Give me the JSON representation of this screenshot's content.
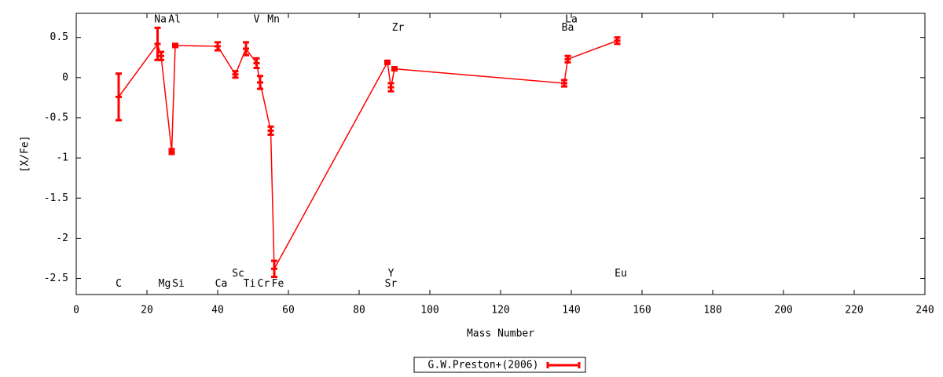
{
  "chart_data": {
    "type": "line",
    "xlabel": "Mass Number",
    "ylabel": "[X/Fe]",
    "xlim": [
      0,
      240
    ],
    "xticks": [
      0,
      20,
      40,
      60,
      80,
      100,
      120,
      140,
      160,
      180,
      200,
      220,
      240
    ],
    "ylim": [
      -2.7,
      0.8
    ],
    "yticks": [
      0.5,
      0,
      -0.5,
      -1,
      -1.5,
      -2,
      -2.5
    ],
    "legend": "bottom",
    "series": [
      {
        "name": "G.W.Preston+(2006)",
        "color": "#ff0000",
        "x": [
          12,
          23,
          24,
          27,
          28,
          40,
          45,
          48,
          51,
          52,
          55,
          56,
          88,
          89,
          90,
          138,
          139,
          153
        ],
        "values": [
          -0.24,
          0.42,
          0.27,
          -0.92,
          0.4,
          0.39,
          0.04,
          0.36,
          0.18,
          -0.06,
          -0.66,
          -2.38,
          0.19,
          -0.12,
          0.11,
          -0.07,
          0.23,
          0.46
        ],
        "errors": [
          0.29,
          0.2,
          0.05,
          0.03,
          0.02,
          0.05,
          0.04,
          0.08,
          0.06,
          0.08,
          0.05,
          0.1,
          0.02,
          0.05,
          0.02,
          0.04,
          0.04,
          0.04
        ]
      }
    ],
    "annotations": [
      {
        "text": "C",
        "x": 12,
        "y": -2.57
      },
      {
        "text": "Na",
        "x": 23.8,
        "y": 0.72
      },
      {
        "text": "Al",
        "x": 27.8,
        "y": 0.72
      },
      {
        "text": "V",
        "x": 51,
        "y": 0.72
      },
      {
        "text": "Mn",
        "x": 55.8,
        "y": 0.72
      },
      {
        "text": "Zr",
        "x": 91,
        "y": 0.62
      },
      {
        "text": "La",
        "x": 140,
        "y": 0.72
      },
      {
        "text": "Ba",
        "x": 139,
        "y": 0.62
      },
      {
        "text": "Sc",
        "x": 45.8,
        "y": -2.44
      },
      {
        "text": "Ca",
        "x": 41,
        "y": -2.57
      },
      {
        "text": "Mg",
        "x": 25,
        "y": -2.57
      },
      {
        "text": "Si",
        "x": 28.9,
        "y": -2.57
      },
      {
        "text": "Ti",
        "x": 49,
        "y": -2.57
      },
      {
        "text": "Cr",
        "x": 53,
        "y": -2.57
      },
      {
        "text": "Fe",
        "x": 57,
        "y": -2.57
      },
      {
        "text": "Y",
        "x": 89,
        "y": -2.44
      },
      {
        "text": "Sr",
        "x": 89,
        "y": -2.57
      },
      {
        "text": "Eu",
        "x": 154,
        "y": -2.44
      }
    ]
  }
}
